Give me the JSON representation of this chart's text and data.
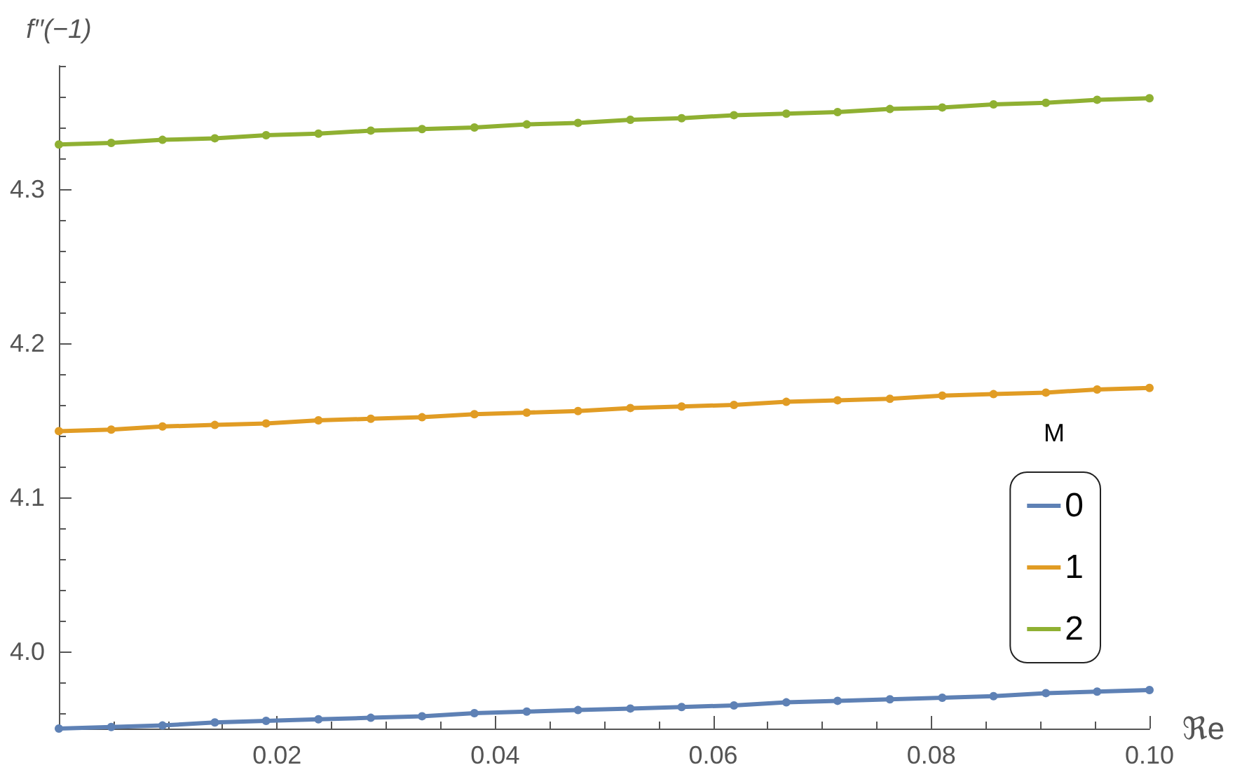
{
  "chart_data": {
    "type": "line",
    "xlabel": "ℜe",
    "ylabel": "f′′(−1)",
    "legend_title": "M",
    "x": [
      0,
      0.0048,
      0.0095,
      0.0143,
      0.019,
      0.0238,
      0.0286,
      0.0333,
      0.0381,
      0.0429,
      0.0476,
      0.0524,
      0.0571,
      0.0619,
      0.0667,
      0.0714,
      0.0762,
      0.081,
      0.0857,
      0.0905,
      0.0952,
      0.1
    ],
    "series": [
      {
        "name": "0",
        "color": "#5e81b5",
        "values": [
          3.95,
          3.951,
          3.952,
          3.954,
          3.955,
          3.956,
          3.957,
          3.958,
          3.96,
          3.961,
          3.962,
          3.963,
          3.964,
          3.965,
          3.967,
          3.968,
          3.969,
          3.97,
          3.971,
          3.973,
          3.974,
          3.975
        ]
      },
      {
        "name": "1",
        "color": "#e19c24",
        "values": [
          4.143,
          4.144,
          4.146,
          4.147,
          4.148,
          4.15,
          4.151,
          4.152,
          4.154,
          4.155,
          4.156,
          4.158,
          4.159,
          4.16,
          4.162,
          4.163,
          4.164,
          4.166,
          4.167,
          4.168,
          4.17,
          4.171
        ]
      },
      {
        "name": "2",
        "color": "#8fb032",
        "values": [
          4.329,
          4.33,
          4.332,
          4.333,
          4.335,
          4.336,
          4.338,
          4.339,
          4.34,
          4.342,
          4.343,
          4.345,
          4.346,
          4.348,
          4.349,
          4.35,
          4.352,
          4.353,
          4.355,
          4.356,
          4.358,
          4.359
        ]
      }
    ],
    "xlim": [
      0,
      0.1
    ],
    "xticks": [
      {
        "value": 0.005,
        "label": null
      },
      {
        "value": 0.01,
        "label": null
      },
      {
        "value": 0.015,
        "label": null
      },
      0.02,
      {
        "value": 0.025,
        "label": null
      },
      {
        "value": 0.03,
        "label": null
      },
      {
        "value": 0.035,
        "label": null
      },
      0.04,
      {
        "value": 0.045,
        "label": null
      },
      {
        "value": 0.05,
        "label": null
      },
      {
        "value": 0.055,
        "label": null
      },
      0.06,
      {
        "value": 0.065,
        "label": null
      },
      {
        "value": 0.07,
        "label": null
      },
      {
        "value": 0.075,
        "label": null
      },
      0.08,
      {
        "value": 0.085,
        "label": null
      },
      {
        "value": 0.09,
        "label": null
      },
      {
        "value": 0.095,
        "label": null
      },
      {
        "value": 0.1,
        "label": "0.10"
      }
    ],
    "ylim": [
      3.95,
      4.38
    ],
    "yticks": [
      {
        "value": 3.96,
        "label": null
      },
      {
        "value": 3.98,
        "label": null
      },
      {
        "value": 4.0,
        "label": "4.0"
      },
      {
        "value": 4.02,
        "label": null
      },
      {
        "value": 4.04,
        "label": null
      },
      {
        "value": 4.06,
        "label": null
      },
      {
        "value": 4.08,
        "label": null
      },
      4.1,
      {
        "value": 4.12,
        "label": null
      },
      {
        "value": 4.14,
        "label": null
      },
      {
        "value": 4.16,
        "label": null
      },
      {
        "value": 4.18,
        "label": null
      },
      4.2,
      {
        "value": 4.22,
        "label": null
      },
      {
        "value": 4.24,
        "label": null
      },
      {
        "value": 4.26,
        "label": null
      },
      {
        "value": 4.28,
        "label": null
      },
      4.3,
      {
        "value": 4.32,
        "label": null
      },
      {
        "value": 4.34,
        "label": null
      },
      {
        "value": 4.36,
        "label": null
      },
      {
        "value": 4.38,
        "label": null
      }
    ],
    "grid": false,
    "legend": "bottom right",
    "marker": "circle",
    "line_style": "solid"
  }
}
